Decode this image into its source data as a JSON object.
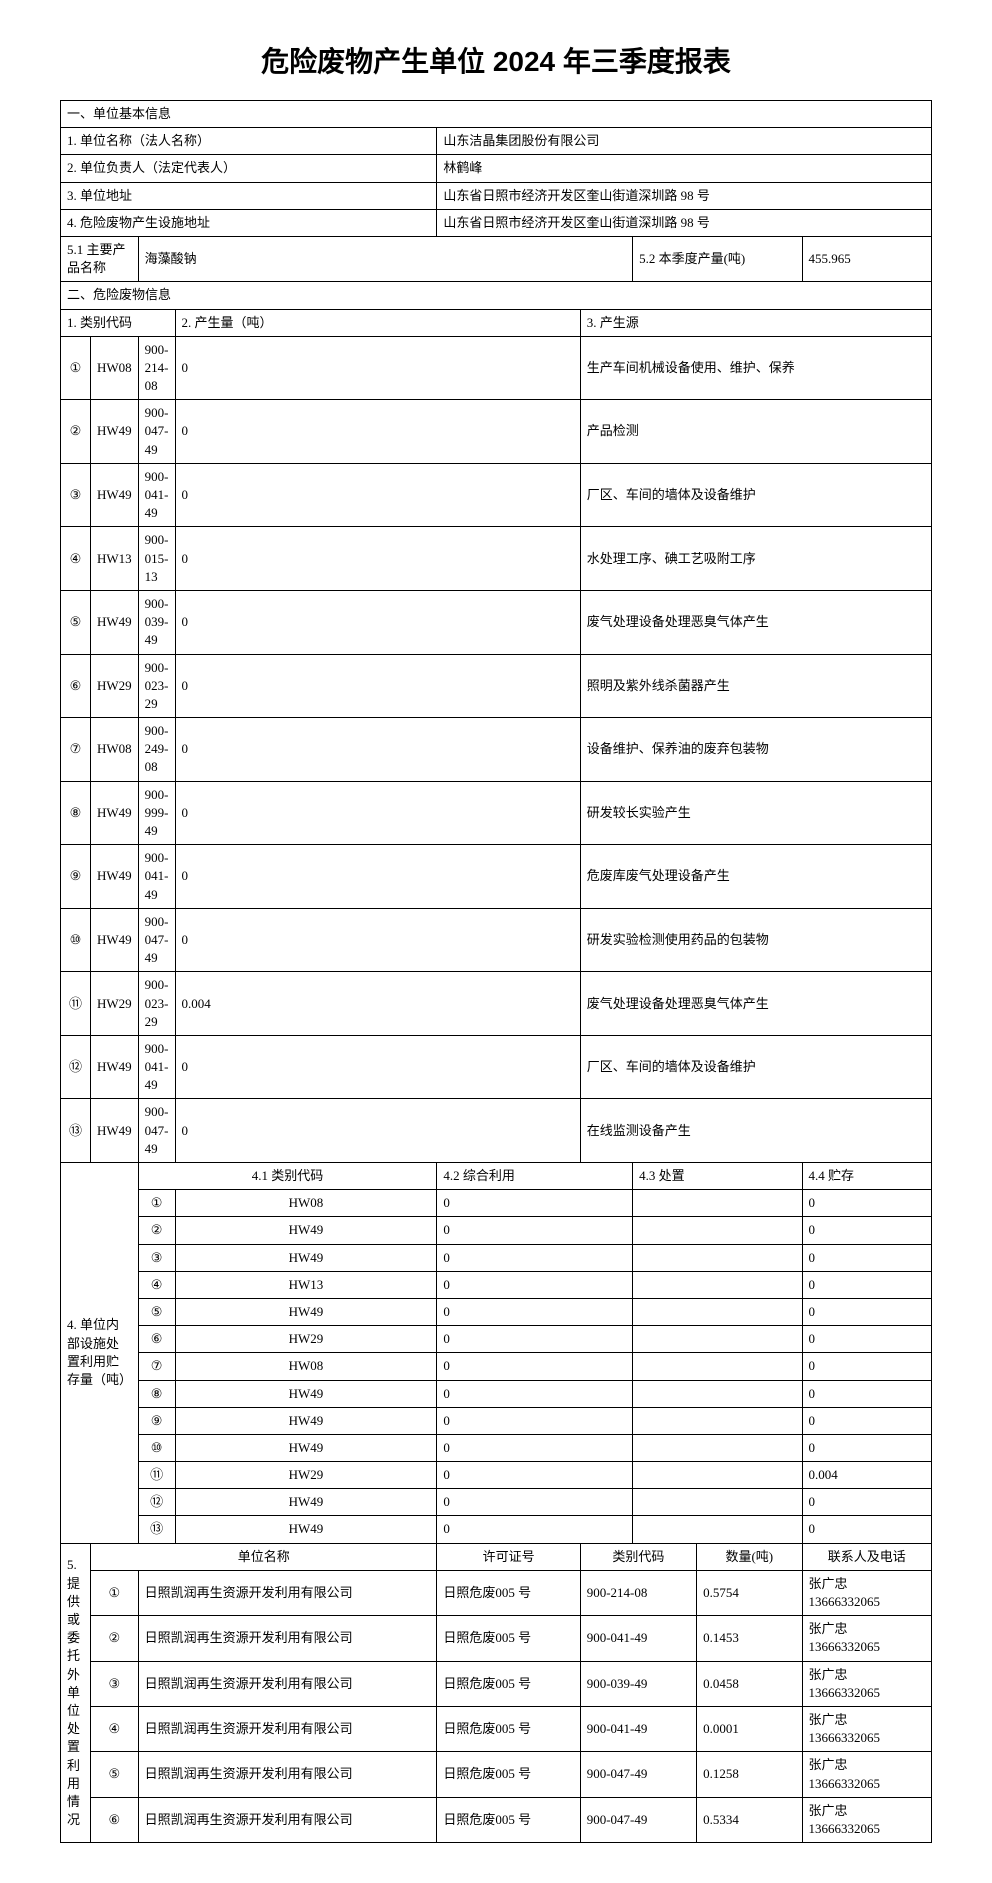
{
  "title": "危险废物产生单位 2024 年三季度报表",
  "section1_header": "一、单位基本信息",
  "basic_info": {
    "row1_label": "1. 单位名称（法人名称）",
    "row1_value": "山东洁晶集团股份有限公司",
    "row2_label": "2. 单位负责人（法定代表人）",
    "row2_value": "林鹤峰",
    "row3_label": "3. 单位地址",
    "row3_value": "山东省日照市经济开发区奎山街道深圳路 98 号",
    "row4_label": "4. 危险废物产生设施地址",
    "row4_value": "山东省日照市经济开发区奎山街道深圳路 98 号",
    "row5_label1": "5.1 主要产品名称",
    "row5_value1": "海藻酸钠",
    "row5_label2": "5.2 本季度产量(吨)",
    "row5_value2": "455.965"
  },
  "section2_header": "二、危险废物信息",
  "waste_header": {
    "col1": "1. 类别代码",
    "col2": "2. 产生量（吨）",
    "col3": "3. 产生源"
  },
  "waste_rows": [
    {
      "num": "①",
      "hw": "HW08",
      "code": "900-214-08",
      "qty": "0",
      "source": "生产车间机械设备使用、维护、保养"
    },
    {
      "num": "②",
      "hw": "HW49",
      "code": "900-047-49",
      "qty": "0",
      "source": "产品检测"
    },
    {
      "num": "③",
      "hw": "HW49",
      "code": "900-041-49",
      "qty": "0",
      "source": "厂区、车间的墙体及设备维护"
    },
    {
      "num": "④",
      "hw": "HW13",
      "code": "900-015-13",
      "qty": "0",
      "source": "水处理工序、碘工艺吸附工序"
    },
    {
      "num": "⑤",
      "hw": "HW49",
      "code": "900-039-49",
      "qty": "0",
      "source": "废气处理设备处理恶臭气体产生"
    },
    {
      "num": "⑥",
      "hw": "HW29",
      "code": "900-023-29",
      "qty": "0",
      "source": "照明及紫外线杀菌器产生"
    },
    {
      "num": "⑦",
      "hw": "HW08",
      "code": "900-249-08",
      "qty": "0",
      "source": "设备维护、保养油的废弃包装物"
    },
    {
      "num": "⑧",
      "hw": "HW49",
      "code": "900-999-49",
      "qty": "0",
      "source": "研发较长实验产生"
    },
    {
      "num": "⑨",
      "hw": "HW49",
      "code": "900-041-49",
      "qty": "0",
      "source": "危废库废气处理设备产生"
    },
    {
      "num": "⑩",
      "hw": "HW49",
      "code": "900-047-49",
      "qty": "0",
      "source": "研发实验检测使用药品的包装物"
    },
    {
      "num": "⑪",
      "hw": "HW29",
      "code": "900-023-29",
      "qty": "0.004",
      "source": "废气处理设备处理恶臭气体产生"
    },
    {
      "num": "⑫",
      "hw": "HW49",
      "code": "900-041-49",
      "qty": "0",
      "source": "厂区、车间的墙体及设备维护"
    },
    {
      "num": "⑬",
      "hw": "HW49",
      "code": "900-047-49",
      "qty": "0",
      "source": "在线监测设备产生"
    }
  ],
  "storage_label": "4. 单位内部设施处置利用贮存量（吨）",
  "storage_header": {
    "col1": "4.1 类别代码",
    "col2": "4.2 综合利用",
    "col3": "4.3 处置",
    "col4": "4.4 贮存"
  },
  "storage_rows": [
    {
      "num": "①",
      "code": "HW08",
      "use": "0",
      "dispose": "",
      "store": "0"
    },
    {
      "num": "②",
      "code": "HW49",
      "use": "0",
      "dispose": "",
      "store": "0"
    },
    {
      "num": "③",
      "code": "HW49",
      "use": "0",
      "dispose": "",
      "store": "0"
    },
    {
      "num": "④",
      "code": "HW13",
      "use": "0",
      "dispose": "",
      "store": "0"
    },
    {
      "num": "⑤",
      "code": "HW49",
      "use": "0",
      "dispose": "",
      "store": "0"
    },
    {
      "num": "⑥",
      "code": "HW29",
      "use": "0",
      "dispose": "",
      "store": "0"
    },
    {
      "num": "⑦",
      "code": "HW08",
      "use": "0",
      "dispose": "",
      "store": "0"
    },
    {
      "num": "⑧",
      "code": "HW49",
      "use": "0",
      "dispose": "",
      "store": "0"
    },
    {
      "num": "⑨",
      "code": "HW49",
      "use": "0",
      "dispose": "",
      "store": "0"
    },
    {
      "num": "⑩",
      "code": "HW49",
      "use": "0",
      "dispose": "",
      "store": "0"
    },
    {
      "num": "⑪",
      "code": "HW29",
      "use": "0",
      "dispose": "",
      "store": "0.004"
    },
    {
      "num": "⑫",
      "code": "HW49",
      "use": "0",
      "dispose": "",
      "store": "0"
    },
    {
      "num": "⑬",
      "code": "HW49",
      "use": "0",
      "dispose": "",
      "store": "0"
    }
  ],
  "external_label": "5. 提供或委托外单位处置利用情况",
  "external_header": {
    "col1": "单位名称",
    "col2": "许可证号",
    "col3": "类别代码",
    "col4": "数量(吨)",
    "col5": "联系人及电话"
  },
  "external_rows": [
    {
      "num": "①",
      "company": "日照凯润再生资源开发利用有限公司",
      "permit": "日照危废005 号",
      "code": "900-214-08",
      "qty": "0.5754",
      "contact": "张广忠",
      "phone": "13666332065"
    },
    {
      "num": "②",
      "company": "日照凯润再生资源开发利用有限公司",
      "permit": "日照危废005 号",
      "code": "900-041-49",
      "qty": "0.1453",
      "contact": "张广忠",
      "phone": "13666332065"
    },
    {
      "num": "③",
      "company": "日照凯润再生资源开发利用有限公司",
      "permit": "日照危废005 号",
      "code": "900-039-49",
      "qty": "0.0458",
      "contact": "张广忠",
      "phone": "13666332065"
    },
    {
      "num": "④",
      "company": "日照凯润再生资源开发利用有限公司",
      "permit": "日照危废005 号",
      "code": "900-041-49",
      "qty": "0.0001",
      "contact": "张广忠",
      "phone": "13666332065"
    },
    {
      "num": "⑤",
      "company": "日照凯润再生资源开发利用有限公司",
      "permit": "日照危废005 号",
      "code": "900-047-49",
      "qty": "0.1258",
      "contact": "张广忠",
      "phone": "13666332065"
    },
    {
      "num": "⑥",
      "company": "日照凯润再生资源开发利用有限公司",
      "permit": "日照危废005 号",
      "code": "900-047-49",
      "qty": "0.5334",
      "contact": "张广忠",
      "phone": "13666332065"
    }
  ]
}
